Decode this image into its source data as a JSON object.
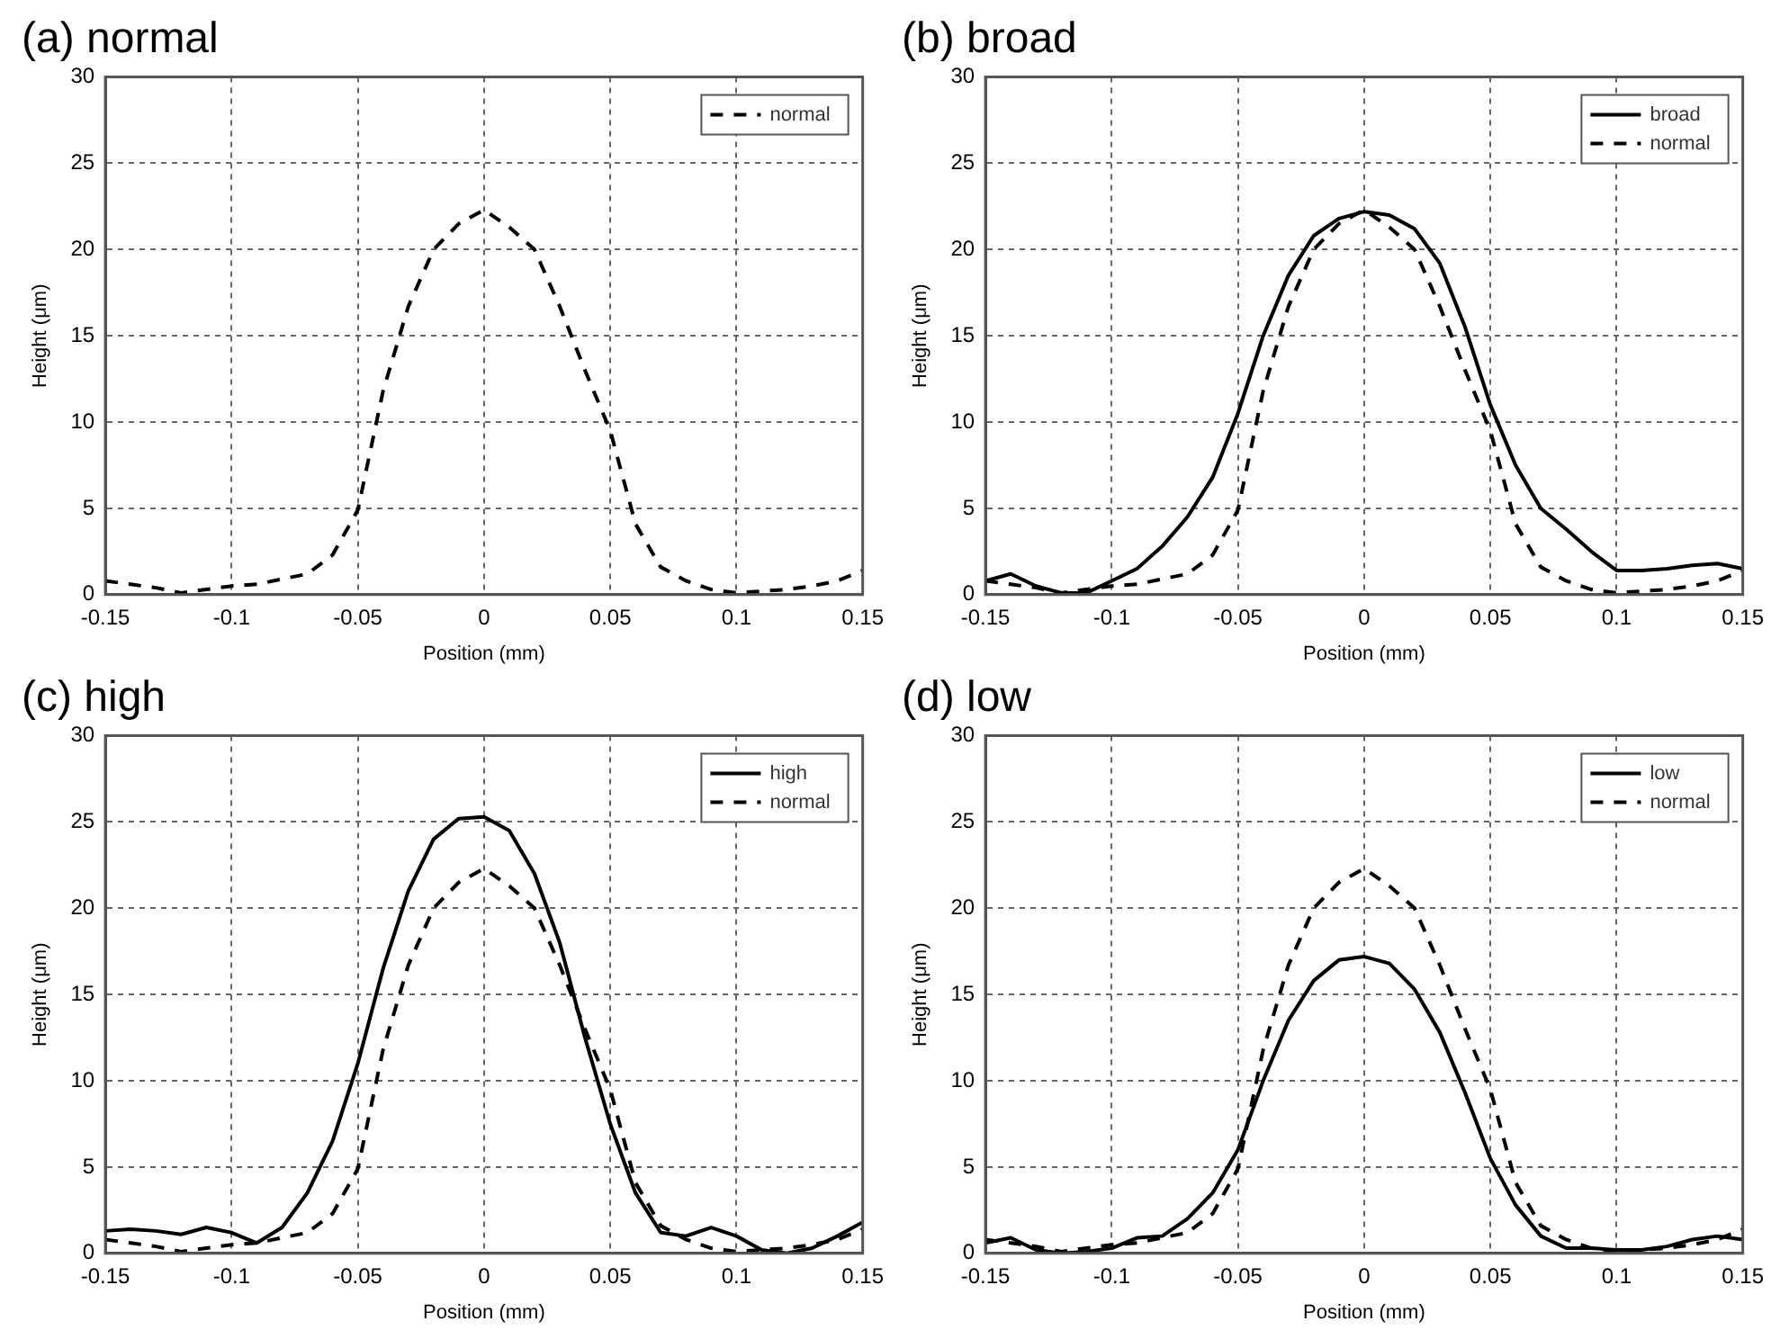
{
  "chart_data": [
    {
      "type": "line",
      "title": "(a) normal",
      "xlabel": "Position (mm)",
      "ylabel": "Height (μm)",
      "xlim": [
        -0.15,
        0.15
      ],
      "xticks": [
        -0.15,
        -0.1,
        -0.05,
        0,
        0.05,
        0.1,
        0.15
      ],
      "ylim": [
        0,
        30
      ],
      "yticks": [
        0,
        5,
        10,
        15,
        20,
        25,
        30
      ],
      "grid": true,
      "legend": "top right",
      "marker": "none",
      "x": [
        -0.15,
        -0.14,
        -0.13,
        -0.12,
        -0.11,
        -0.1,
        -0.09,
        -0.08,
        -0.07,
        -0.06,
        -0.05,
        -0.04,
        -0.03,
        -0.02,
        -0.01,
        0,
        0.01,
        0.02,
        0.03,
        0.04,
        0.05,
        0.06,
        0.07,
        0.08,
        0.09,
        0.1,
        0.11,
        0.12,
        0.13,
        0.14,
        0.15
      ],
      "series": [
        {
          "name": "normal",
          "color": "#000000",
          "line_style": "dashed",
          "values": [
            0.8,
            0.6,
            0.4,
            0.1,
            0.3,
            0.5,
            0.6,
            0.9,
            1.2,
            2.3,
            4.9,
            11.8,
            16.7,
            20,
            21.5,
            22.3,
            21.3,
            20,
            16.7,
            13,
            9.5,
            4.1,
            1.6,
            0.8,
            0.3,
            0.1,
            0.2,
            0.3,
            0.5,
            0.8,
            1.4
          ]
        }
      ]
    },
    {
      "type": "line",
      "title": "(b) broad",
      "xlabel": "Position (mm)",
      "ylabel": "Height (μm)",
      "xlim": [
        -0.15,
        0.15
      ],
      "xticks": [
        -0.15,
        -0.1,
        -0.05,
        0,
        0.05,
        0.1,
        0.15
      ],
      "ylim": [
        0,
        30
      ],
      "yticks": [
        0,
        5,
        10,
        15,
        20,
        25,
        30
      ],
      "grid": true,
      "legend": "top right",
      "marker": "none",
      "x": [
        -0.15,
        -0.14,
        -0.13,
        -0.12,
        -0.11,
        -0.1,
        -0.09,
        -0.08,
        -0.07,
        -0.06,
        -0.05,
        -0.04,
        -0.03,
        -0.02,
        -0.01,
        0,
        0.01,
        0.02,
        0.03,
        0.04,
        0.05,
        0.06,
        0.07,
        0.08,
        0.09,
        0.1,
        0.11,
        0.12,
        0.13,
        0.14,
        0.15
      ],
      "series": [
        {
          "name": "broad",
          "color": "#000000",
          "line_style": "solid",
          "values": [
            0.8,
            1.2,
            0.5,
            0.1,
            0.1,
            0.8,
            1.5,
            2.8,
            4.5,
            6.8,
            10.5,
            15,
            18.5,
            20.8,
            21.8,
            22.2,
            22,
            21.2,
            19.2,
            15.5,
            11,
            7.5,
            5,
            3.8,
            2.5,
            1.4,
            1.4,
            1.5,
            1.7,
            1.8,
            1.5
          ]
        },
        {
          "name": "normal",
          "color": "#000000",
          "line_style": "dashed",
          "values": [
            0.8,
            0.6,
            0.4,
            0.1,
            0.3,
            0.5,
            0.6,
            0.9,
            1.2,
            2.3,
            4.9,
            11.8,
            16.7,
            20,
            21.5,
            22.3,
            21.3,
            20,
            16.7,
            13,
            9.5,
            4.1,
            1.6,
            0.8,
            0.3,
            0.1,
            0.2,
            0.3,
            0.5,
            0.8,
            1.4
          ]
        }
      ]
    },
    {
      "type": "line",
      "title": "(c) high",
      "xlabel": "Position (mm)",
      "ylabel": "Height (μm)",
      "xlim": [
        -0.15,
        0.15
      ],
      "xticks": [
        -0.15,
        -0.1,
        -0.05,
        0,
        0.05,
        0.1,
        0.15
      ],
      "ylim": [
        0,
        30
      ],
      "yticks": [
        0,
        5,
        10,
        15,
        20,
        25,
        30
      ],
      "grid": true,
      "legend": "top right",
      "marker": "none",
      "x": [
        -0.15,
        -0.14,
        -0.13,
        -0.12,
        -0.11,
        -0.1,
        -0.09,
        -0.08,
        -0.07,
        -0.06,
        -0.05,
        -0.04,
        -0.03,
        -0.02,
        -0.01,
        0,
        0.01,
        0.02,
        0.03,
        0.04,
        0.05,
        0.06,
        0.07,
        0.08,
        0.09,
        0.1,
        0.11,
        0.12,
        0.13,
        0.14,
        0.15
      ],
      "series": [
        {
          "name": "high",
          "color": "#000000",
          "line_style": "solid",
          "values": [
            1.3,
            1.4,
            1.3,
            1.1,
            1.5,
            1.2,
            0.6,
            1.5,
            3.5,
            6.5,
            11,
            16.5,
            21,
            24,
            25.2,
            25.3,
            24.5,
            22,
            18,
            12.5,
            7.5,
            3.5,
            1.2,
            1,
            1.5,
            1,
            0.2,
            0,
            0.3,
            1,
            1.8
          ]
        },
        {
          "name": "normal",
          "color": "#000000",
          "line_style": "dashed",
          "values": [
            0.8,
            0.6,
            0.4,
            0.1,
            0.3,
            0.5,
            0.6,
            0.9,
            1.2,
            2.3,
            4.9,
            11.8,
            16.7,
            20,
            21.5,
            22.3,
            21.3,
            20,
            16.7,
            13,
            9.5,
            4.1,
            1.6,
            0.8,
            0.3,
            0.1,
            0.2,
            0.3,
            0.5,
            0.8,
            1.4
          ]
        }
      ]
    },
    {
      "type": "line",
      "title": "(d) low",
      "xlabel": "Position (mm)",
      "ylabel": "Height (μm)",
      "xlim": [
        -0.15,
        0.15
      ],
      "xticks": [
        -0.15,
        -0.1,
        -0.05,
        0,
        0.05,
        0.1,
        0.15
      ],
      "ylim": [
        0,
        30
      ],
      "yticks": [
        0,
        5,
        10,
        15,
        20,
        25,
        30
      ],
      "grid": true,
      "legend": "top right",
      "marker": "none",
      "x": [
        -0.15,
        -0.14,
        -0.13,
        -0.12,
        -0.11,
        -0.1,
        -0.09,
        -0.08,
        -0.07,
        -0.06,
        -0.05,
        -0.04,
        -0.03,
        -0.02,
        -0.01,
        0,
        0.01,
        0.02,
        0.03,
        0.04,
        0.05,
        0.06,
        0.07,
        0.08,
        0.09,
        0.1,
        0.11,
        0.12,
        0.13,
        0.14,
        0.15
      ],
      "series": [
        {
          "name": "low",
          "color": "#000000",
          "line_style": "solid",
          "values": [
            0.6,
            0.9,
            0.2,
            0,
            0.1,
            0.3,
            0.9,
            1,
            2,
            3.5,
            6,
            10,
            13.5,
            15.8,
            17,
            17.2,
            16.8,
            15.3,
            12.8,
            9.3,
            5.5,
            2.8,
            1,
            0.3,
            0.3,
            0.2,
            0.2,
            0.4,
            0.8,
            1,
            0.8
          ]
        },
        {
          "name": "normal",
          "color": "#000000",
          "line_style": "dashed",
          "values": [
            0.8,
            0.6,
            0.4,
            0.1,
            0.3,
            0.5,
            0.6,
            0.9,
            1.2,
            2.3,
            4.9,
            11.8,
            16.7,
            20,
            21.5,
            22.3,
            21.3,
            20,
            16.7,
            13,
            9.5,
            4.1,
            1.6,
            0.8,
            0.3,
            0.1,
            0.2,
            0.3,
            0.5,
            0.8,
            1.4
          ]
        }
      ]
    }
  ]
}
